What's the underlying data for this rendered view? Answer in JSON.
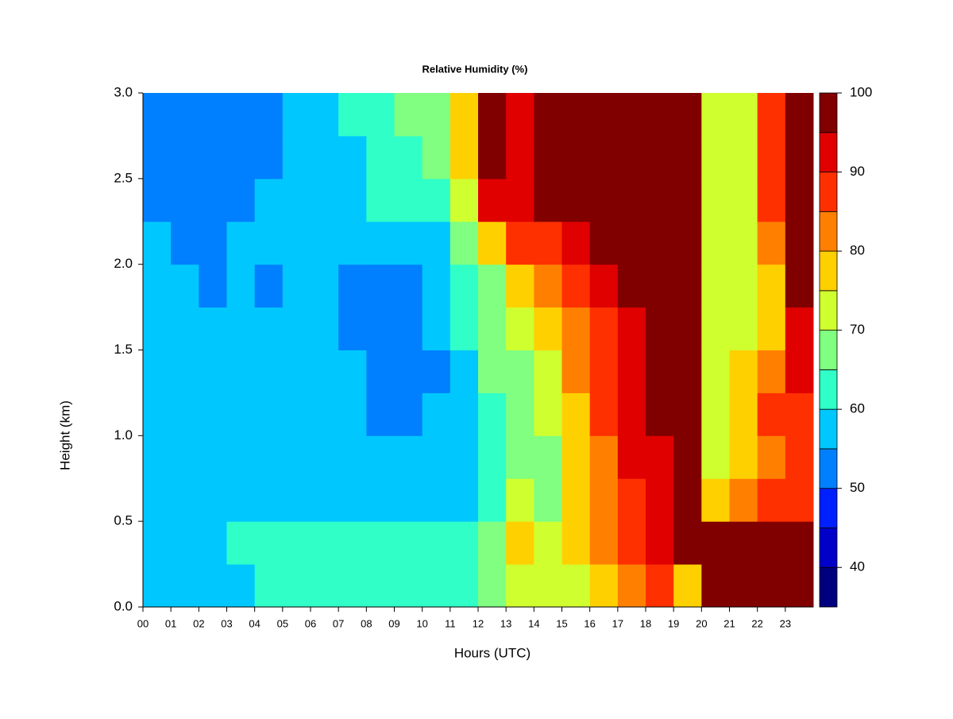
{
  "chart_data": {
    "type": "heatmap",
    "title": "Relative Humidity (%)",
    "xlabel": "Hours (UTC)",
    "ylabel": "Height (km)",
    "x": [
      0,
      1,
      2,
      3,
      4,
      5,
      6,
      7,
      8,
      9,
      10,
      11,
      12,
      13,
      14,
      15,
      16,
      17,
      18,
      19,
      20,
      21,
      22,
      23
    ],
    "y": [
      0,
      0.25,
      0.5,
      0.75,
      1,
      1.25,
      1.5,
      1.75,
      2,
      2.25,
      2.5,
      2.75
    ],
    "z": [
      [
        57,
        58,
        57,
        57,
        57,
        57,
        56,
        55,
        55,
        54,
        53,
        53
      ],
      [
        58,
        58,
        56,
        56,
        57,
        57,
        56,
        55,
        54,
        53,
        52,
        52
      ],
      [
        58,
        59,
        55,
        55,
        56,
        56,
        55,
        54,
        54,
        52,
        50,
        50
      ],
      [
        58,
        60,
        56,
        56,
        57,
        57,
        56,
        55,
        55,
        53,
        52,
        52
      ],
      [
        62,
        62,
        57,
        57,
        57,
        56,
        55,
        54,
        55,
        55,
        52,
        53
      ],
      [
        62,
        61,
        57,
        57,
        56,
        56,
        56,
        55,
        55,
        56,
        55,
        56
      ],
      [
        60,
        60,
        57,
        57,
        56,
        56,
        56,
        56,
        56,
        57,
        57,
        58
      ],
      [
        61,
        60,
        56,
        56,
        55,
        55,
        54,
        53,
        56,
        58,
        58,
        60
      ],
      [
        62,
        61,
        57,
        56,
        54,
        54,
        53,
        53,
        57,
        60,
        62,
        63
      ],
      [
        62,
        60,
        56,
        55,
        53,
        52,
        53,
        54,
        57,
        62,
        64,
        65
      ],
      [
        61,
        60,
        57,
        56,
        55,
        54,
        55,
        56,
        58,
        64,
        67,
        69
      ],
      [
        62,
        62,
        59,
        58,
        58,
        58,
        60,
        62,
        65,
        72,
        77,
        78
      ],
      [
        66,
        66,
        64,
        64,
        64,
        65,
        66,
        68,
        78,
        90,
        96,
        98
      ],
      [
        73,
        76,
        70,
        68,
        67,
        68,
        70,
        76,
        85,
        92,
        92,
        92
      ],
      [
        70,
        73,
        68,
        68,
        70,
        72,
        75,
        80,
        88,
        96,
        98,
        99
      ],
      [
        72,
        77,
        75,
        76,
        78,
        80,
        82,
        86,
        92,
        97,
        98,
        99
      ],
      [
        76,
        82,
        82,
        84,
        86,
        86,
        88,
        92,
        97,
        99,
        99,
        99
      ],
      [
        82,
        88,
        88,
        90,
        91,
        90,
        92,
        96,
        99,
        99,
        99,
        99
      ],
      [
        88,
        92,
        92,
        93,
        95,
        95,
        97,
        99,
        99,
        99,
        99,
        99
      ],
      [
        78,
        95,
        96,
        97,
        99,
        99,
        99,
        99,
        99,
        99,
        99,
        99
      ],
      [
        97,
        96,
        75,
        72,
        72,
        72,
        72,
        72,
        72,
        72,
        72,
        72
      ],
      [
        97,
        96,
        80,
        78,
        75,
        75,
        72,
        72,
        72,
        72,
        72,
        72
      ],
      [
        99,
        99,
        85,
        82,
        85,
        80,
        78,
        78,
        80,
        85,
        88,
        88
      ],
      [
        99,
        99,
        88,
        85,
        85,
        90,
        92,
        95,
        97,
        97,
        97,
        97
      ]
    ],
    "xlim": [
      0,
      24
    ],
    "ylim": [
      0,
      3
    ],
    "xticks": [
      {
        "value": 0,
        "label": "00"
      },
      {
        "value": 1,
        "label": "01"
      },
      {
        "value": 2,
        "label": "02"
      },
      {
        "value": 3,
        "label": "03"
      },
      {
        "value": 4,
        "label": "04"
      },
      {
        "value": 5,
        "label": "05"
      },
      {
        "value": 6,
        "label": "06"
      },
      {
        "value": 7,
        "label": "07"
      },
      {
        "value": 8,
        "label": "08"
      },
      {
        "value": 9,
        "label": "09"
      },
      {
        "value": 10,
        "label": "10"
      },
      {
        "value": 11,
        "label": "11"
      },
      {
        "value": 12,
        "label": "12"
      },
      {
        "value": 13,
        "label": "13"
      },
      {
        "value": 14,
        "label": "14"
      },
      {
        "value": 15,
        "label": "15"
      },
      {
        "value": 16,
        "label": "16"
      },
      {
        "value": 17,
        "label": "17"
      },
      {
        "value": 18,
        "label": "18"
      },
      {
        "value": 19,
        "label": "19"
      },
      {
        "value": 20,
        "label": "20"
      },
      {
        "value": 21,
        "label": "21"
      },
      {
        "value": 22,
        "label": "22"
      },
      {
        "value": 23,
        "label": "23"
      }
    ],
    "yticks": [
      {
        "value": 0,
        "label": "0.0"
      },
      0.5,
      {
        "value": 1,
        "label": "1.0"
      },
      1.5,
      {
        "value": 2,
        "label": "2.0"
      },
      2.5,
      {
        "value": 3,
        "label": "3.0"
      }
    ],
    "levels": [
      35,
      40,
      45,
      50,
      55,
      60,
      65,
      70,
      75,
      80,
      85,
      90,
      95,
      100
    ],
    "colors": [
      "#00007f",
      "#0000c8",
      "#0020ff",
      "#0080ff",
      "#00c8ff",
      "#30ffc8",
      "#80ff80",
      "#d0ff30",
      "#ffd000",
      "#ff8000",
      "#ff3000",
      "#e00000",
      "#800000"
    ],
    "colorbar_ticks": [
      40,
      50,
      60,
      70,
      80,
      90,
      100
    ]
  }
}
